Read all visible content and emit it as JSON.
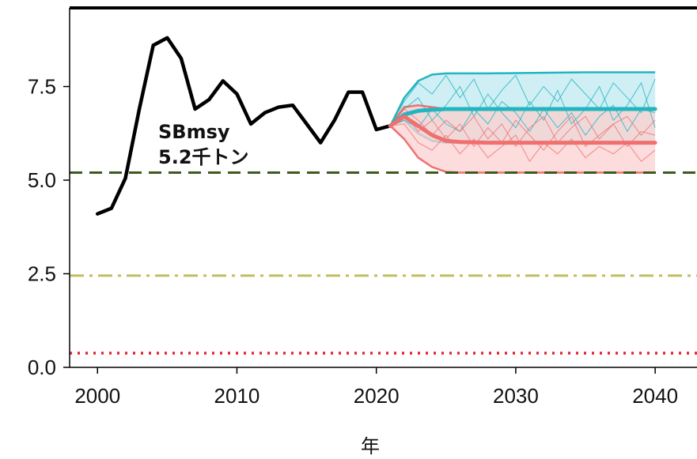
{
  "chart_data": {
    "type": "line",
    "title": "",
    "xlabel": "年",
    "ylabel": "",
    "xlim": [
      1998,
      2043
    ],
    "ylim": [
      0,
      9.6
    ],
    "x_ticks": [
      "2000",
      "2010",
      "2020",
      "2030",
      "2040"
    ],
    "y_ticks": [
      "0.0",
      "2.5",
      "5.0",
      "7.5"
    ],
    "annotation": {
      "line1": "SBmsy",
      "line2": "5.2千トン"
    },
    "reference_lines": [
      {
        "value": 5.2,
        "style": "dashed",
        "color": "#3d5a1e"
      },
      {
        "value": 2.45,
        "style": "dashdot",
        "color": "#c3bd62"
      },
      {
        "value": 0.38,
        "style": "dotted",
        "color": "#e0232b"
      }
    ],
    "series": [
      {
        "style": "solid",
        "color": "#000000",
        "x": [
          2000,
          2001,
          2002,
          2003,
          2004,
          2005,
          2006,
          2007,
          2008,
          2009,
          2010,
          2011,
          2012,
          2013,
          2014,
          2015,
          2016,
          2017,
          2018,
          2019,
          2020,
          2021
        ],
        "y": [
          4.1,
          4.25,
          5.05,
          6.9,
          8.6,
          8.8,
          8.25,
          6.9,
          7.15,
          7.65,
          7.3,
          6.5,
          6.8,
          6.95,
          7.0,
          6.5,
          6.0,
          6.6,
          7.35,
          7.35,
          6.35,
          6.45
        ]
      },
      {
        "style": "solid",
        "color": "#22b5c0",
        "x": [
          2021,
          2022,
          2023,
          2024,
          2025,
          2026,
          2028,
          2030,
          2035,
          2040
        ],
        "y": [
          6.45,
          6.75,
          6.85,
          6.88,
          6.9,
          6.9,
          6.9,
          6.9,
          6.9,
          6.9
        ]
      },
      {
        "style": "solid",
        "color": "#f07070",
        "x": [
          2021,
          2022,
          2023,
          2024,
          2025,
          2026,
          2028,
          2030,
          2035,
          2040
        ],
        "y": [
          6.45,
          6.7,
          6.45,
          6.2,
          6.05,
          6.02,
          6.0,
          6.0,
          6.0,
          6.0
        ]
      }
    ],
    "bands": [
      {
        "color": "#22b5c0",
        "fill": "#bfeaf0",
        "x": [
          2021,
          2022,
          2023,
          2024,
          2025,
          2026,
          2028,
          2030,
          2035,
          2040
        ],
        "lower": [
          6.45,
          6.6,
          6.25,
          6.05,
          6.0,
          6.0,
          6.0,
          6.0,
          6.0,
          6.0
        ],
        "upper": [
          6.45,
          7.2,
          7.65,
          7.82,
          7.85,
          7.85,
          7.85,
          7.86,
          7.88,
          7.88
        ]
      },
      {
        "color": "#f07070",
        "fill": "#fbd0d0",
        "x": [
          2021,
          2022,
          2023,
          2024,
          2025,
          2026,
          2028,
          2030,
          2035,
          2040
        ],
        "lower": [
          6.45,
          6.1,
          5.6,
          5.35,
          5.22,
          5.2,
          5.2,
          5.2,
          5.2,
          5.2
        ],
        "upper": [
          6.45,
          6.95,
          7.0,
          6.95,
          6.9,
          6.88,
          6.88,
          6.88,
          6.88,
          6.88
        ]
      }
    ],
    "trajectories": [
      {
        "color": "#22b5c0",
        "x": [
          2021,
          2022,
          2023,
          2024,
          2025,
          2026,
          2027,
          2028,
          2029,
          2030,
          2031,
          2032,
          2033,
          2034,
          2035,
          2036,
          2037,
          2038,
          2039,
          2040
        ],
        "y": [
          6.45,
          7.1,
          7.6,
          7.3,
          7.8,
          7.2,
          7.7,
          6.9,
          7.4,
          7.8,
          7.0,
          7.5,
          7.1,
          7.7,
          7.3,
          6.9,
          7.6,
          7.2,
          6.8,
          7.7
        ]
      },
      {
        "color": "#22b5c0",
        "x": [
          2021,
          2022,
          2023,
          2024,
          2025,
          2026,
          2027,
          2028,
          2029,
          2030,
          2031,
          2032,
          2033,
          2034,
          2035,
          2036,
          2037,
          2038,
          2039,
          2040
        ],
        "y": [
          6.45,
          6.9,
          7.2,
          6.6,
          7.0,
          7.5,
          6.7,
          7.3,
          6.8,
          6.4,
          7.1,
          6.6,
          7.4,
          6.5,
          6.9,
          7.5,
          6.6,
          7.0,
          7.6,
          6.4
        ]
      },
      {
        "color": "#22b5c0",
        "x": [
          2021,
          2022,
          2023,
          2024,
          2025,
          2026,
          2027,
          2028,
          2029,
          2030,
          2031,
          2032,
          2033,
          2034,
          2035,
          2036,
          2037,
          2038,
          2039,
          2040
        ],
        "y": [
          6.45,
          6.6,
          6.4,
          6.9,
          6.5,
          6.3,
          6.9,
          6.5,
          7.1,
          6.8,
          6.3,
          6.9,
          6.4,
          6.8,
          6.2,
          6.7,
          7.0,
          6.3,
          6.9,
          6.8
        ]
      },
      {
        "color": "#f07070",
        "x": [
          2021,
          2022,
          2023,
          2024,
          2025,
          2026,
          2027,
          2028,
          2029,
          2030,
          2031,
          2032,
          2033,
          2034,
          2035,
          2036,
          2037,
          2038,
          2039,
          2040
        ],
        "y": [
          6.45,
          6.8,
          6.3,
          6.6,
          6.1,
          6.5,
          5.9,
          6.4,
          6.0,
          6.6,
          6.2,
          5.8,
          6.3,
          6.7,
          5.9,
          6.2,
          6.5,
          5.9,
          6.3,
          6.2
        ]
      },
      {
        "color": "#f07070",
        "x": [
          2021,
          2022,
          2023,
          2024,
          2025,
          2026,
          2027,
          2028,
          2029,
          2030,
          2031,
          2032,
          2033,
          2034,
          2035,
          2036,
          2037,
          2038,
          2039,
          2040
        ],
        "y": [
          6.45,
          6.5,
          6.0,
          5.8,
          6.2,
          5.7,
          6.1,
          5.6,
          5.9,
          6.2,
          5.5,
          6.0,
          5.7,
          6.1,
          5.6,
          5.9,
          5.7,
          6.0,
          5.5,
          5.8
        ]
      },
      {
        "color": "#f07070",
        "x": [
          2021,
          2022,
          2023,
          2024,
          2025,
          2026,
          2027,
          2028,
          2029,
          2030,
          2031,
          2032,
          2033,
          2034,
          2035,
          2036,
          2037,
          2038,
          2039,
          2040
        ],
        "y": [
          6.45,
          6.9,
          6.6,
          6.2,
          6.6,
          6.3,
          6.7,
          6.1,
          6.5,
          5.9,
          6.4,
          6.7,
          6.0,
          6.4,
          6.7,
          6.1,
          6.5,
          6.7,
          6.2,
          6.6
        ]
      }
    ]
  }
}
